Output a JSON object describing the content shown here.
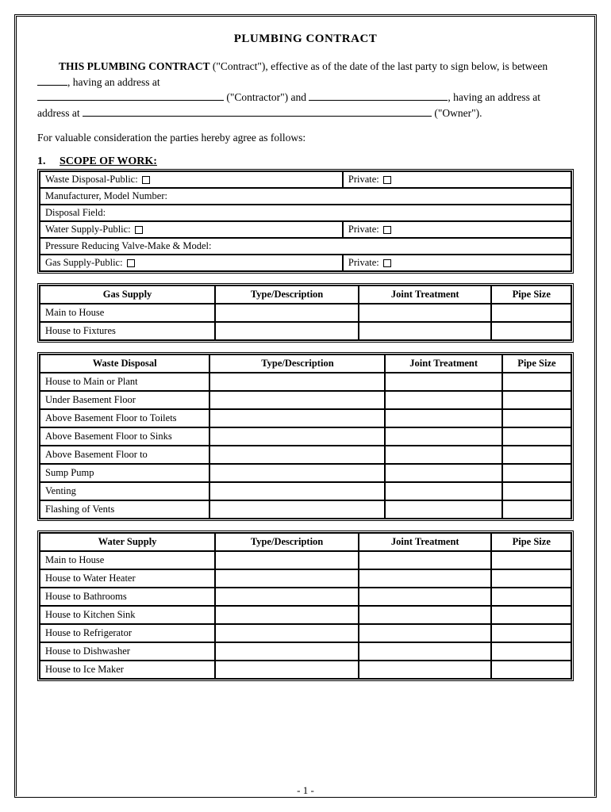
{
  "title": "PLUMBING CONTRACT",
  "intro": {
    "lead_bold": "THIS PLUMBING CONTRACT",
    "part1": " (\"Contract\"), effective as of the date of the last party to sign below, is between ",
    "part2": ", having an address at ",
    "part3": " (\"Contractor\") and ",
    "part4": ", having an address at ",
    "part5": " (\"Owner\")."
  },
  "consideration": "For valuable consideration the parties hereby agree as follows:",
  "section1": {
    "num": "1.",
    "title": "SCOPE OF WORK:"
  },
  "scope": {
    "rows": [
      {
        "left": "Waste Disposal-Public:",
        "left_cb": true,
        "right": "Private:",
        "right_cb": true
      },
      {
        "full": " Manufacturer, Model Number:"
      },
      {
        "full": "  Disposal Field:"
      },
      {
        "left": "Water Supply-Public:",
        "left_cb": true,
        "right": "Private:",
        "right_cb": true
      },
      {
        "full": "  Pressure Reducing Valve-Make & Model:"
      },
      {
        "left": "Gas Supply-Public:",
        "left_cb": true,
        "right": "Private:",
        "right_cb": true
      }
    ]
  },
  "gas_table": {
    "headers": [
      "Gas Supply",
      "Type/Description",
      "Joint Treatment",
      "Pipe Size"
    ],
    "col_widths": [
      "33%",
      "27%",
      "25%",
      "15%"
    ],
    "rows": [
      "Main to House",
      "House to Fixtures"
    ]
  },
  "waste_table": {
    "headers": [
      "Waste Disposal",
      "Type/Description",
      "Joint Treatment",
      "Pipe Size"
    ],
    "col_widths": [
      "32%",
      "33%",
      "22%",
      "13%"
    ],
    "rows": [
      "House to Main or Plant",
      "Under Basement Floor",
      "Above Basement Floor to Toilets",
      "Above Basement Floor to Sinks",
      "Above Basement Floor to",
      "Sump Pump",
      "Venting",
      "Flashing of Vents"
    ]
  },
  "water_table": {
    "headers": [
      "Water Supply",
      "Type/Description",
      "Joint Treatment",
      "Pipe Size"
    ],
    "col_widths": [
      "33%",
      "27%",
      "25%",
      "15%"
    ],
    "rows": [
      "Main to House",
      "House to Water Heater",
      "House to Bathrooms",
      "House to Kitchen Sink",
      "House to Refrigerator",
      "House to Dishwasher",
      "House to Ice Maker"
    ]
  },
  "page_num": "- 1 -"
}
